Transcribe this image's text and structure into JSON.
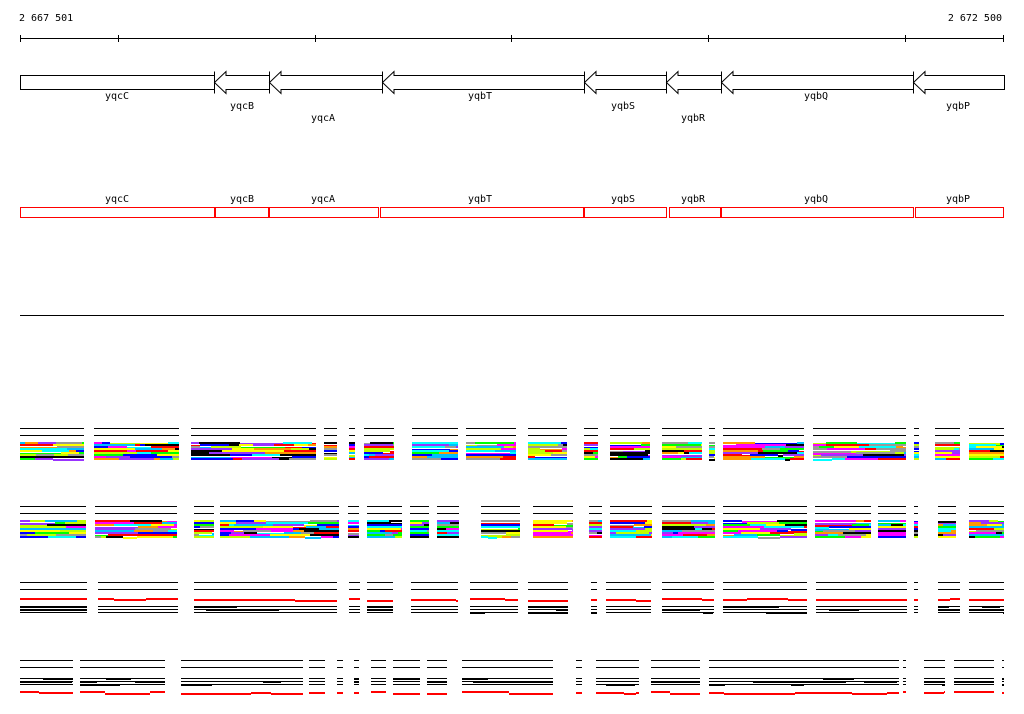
{
  "ruler": {
    "start_label": "2 667 501",
    "end_label": "2 672 500"
  },
  "genes": [
    {
      "name": "yqcC",
      "strand": "+"
    },
    {
      "name": "yqcB",
      "strand": "-"
    },
    {
      "name": "yqcA",
      "strand": "-"
    },
    {
      "name": "yqbT",
      "strand": "-"
    },
    {
      "name": "yqbS",
      "strand": "-"
    },
    {
      "name": "yqbR",
      "strand": "-"
    },
    {
      "name": "yqbQ",
      "strand": "-"
    },
    {
      "name": "yqbP",
      "strand": "-"
    }
  ],
  "annotation_row": [
    "yqcC",
    "yqcB",
    "yqcA",
    "yqbT",
    "yqbS",
    "yqbR",
    "yqbQ",
    "yqbP"
  ],
  "colors": {
    "annotation": "#ff0000",
    "line": "#000000",
    "palette": [
      "#ff0000",
      "#ff00ff",
      "#0000ff",
      "#00c0ff",
      "#00ff00",
      "#c0ff00",
      "#ff9900",
      "#999999",
      "#000000",
      "#9933ff",
      "#00ffff",
      "#ffff00"
    ]
  }
}
